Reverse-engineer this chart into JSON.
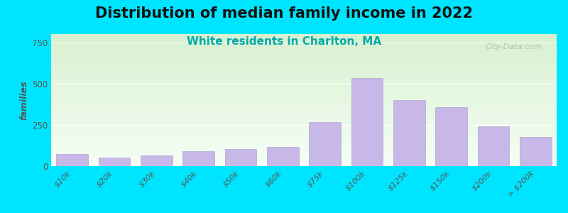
{
  "title": "Distribution of median family income in 2022",
  "subtitle": "White residents in Charlton, MA",
  "categories": [
    "$10k",
    "$20k",
    "$30k",
    "$40k",
    "$50k",
    "$60k",
    "$75k",
    "$100k",
    "$125k",
    "$150k",
    "$200k",
    "> $200k"
  ],
  "values": [
    75,
    50,
    65,
    90,
    105,
    115,
    265,
    535,
    400,
    355,
    240,
    175
  ],
  "bar_color": "#c8b8e8",
  "bar_edge_color": "#b0a0d8",
  "title_fontsize": 15,
  "subtitle_fontsize": 11,
  "subtitle_color": "#00aaaa",
  "ylabel": "families",
  "ylim": [
    0,
    800
  ],
  "yticks": [
    0,
    250,
    500,
    750
  ],
  "background_outer": "#00e5ff",
  "background_inner_top": "#d8f0d0",
  "background_inner_bottom": "#f5fff5",
  "watermark": "City-Data.com",
  "title_color": "#111111"
}
